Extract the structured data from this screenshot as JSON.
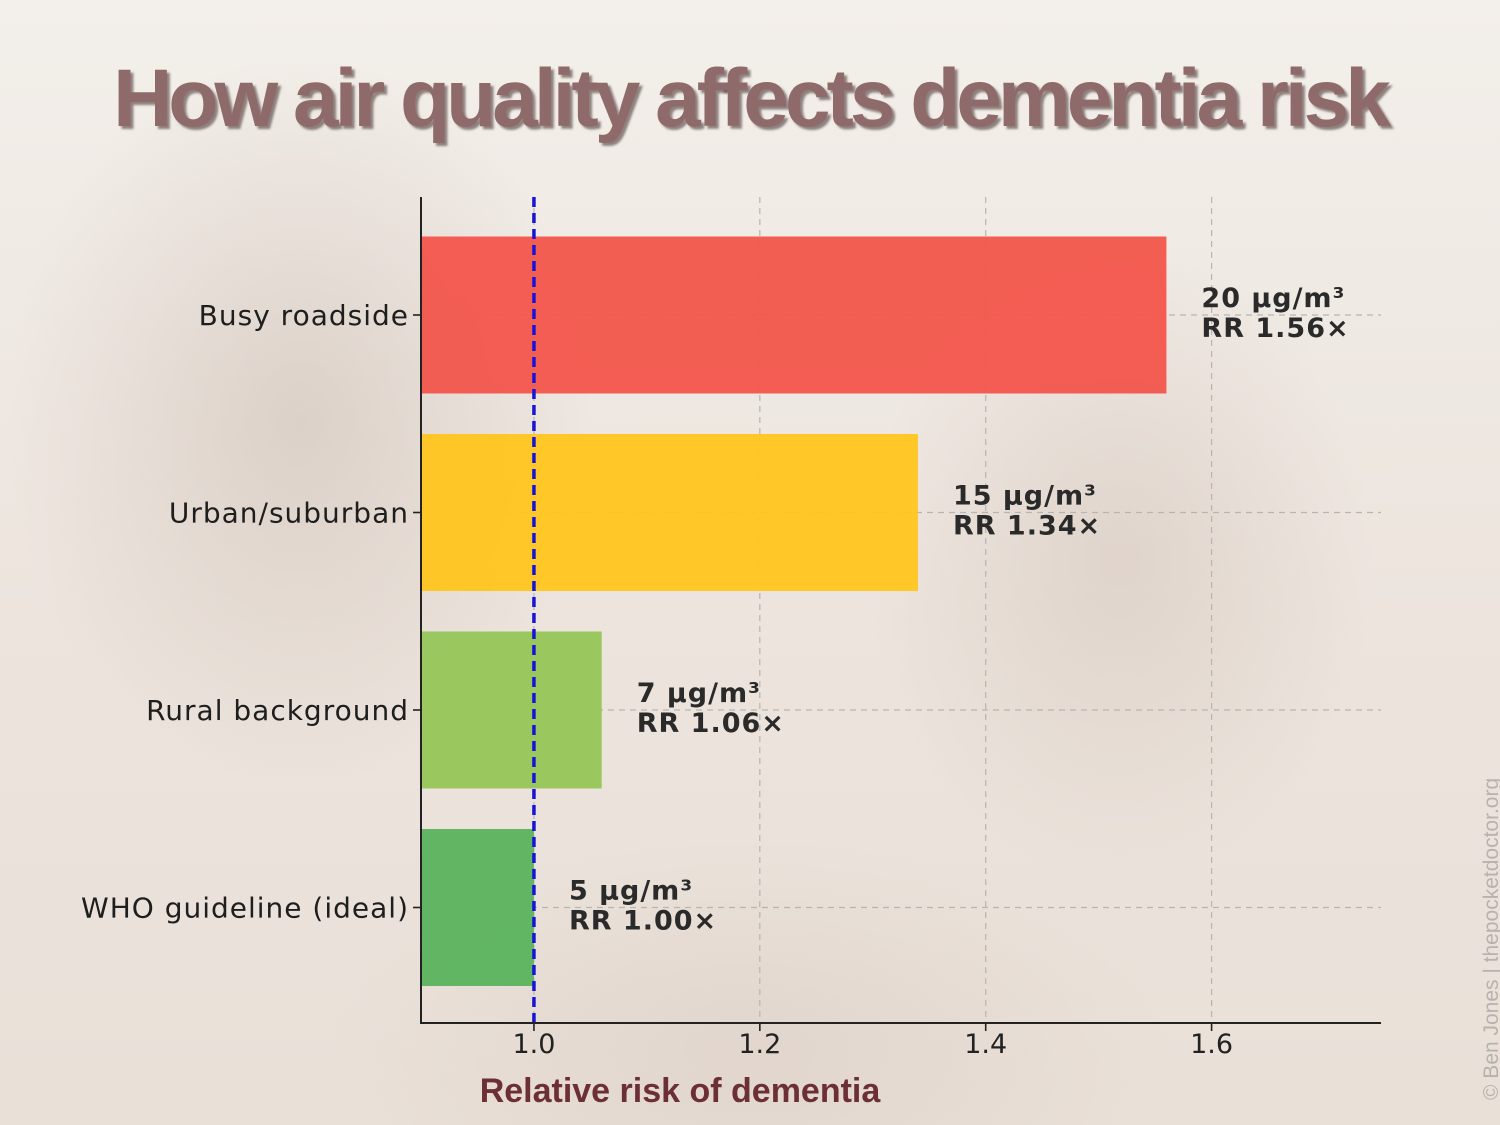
{
  "title": "How air quality affects dementia risk",
  "watermark": "© Ben Jones | thepocketdoctor.org",
  "chart_data": {
    "type": "bar",
    "orientation": "horizontal",
    "title": "How air quality affects dementia risk",
    "xlabel": "Relative risk of dementia",
    "ylabel": "",
    "xlim": [
      0.9,
      1.75
    ],
    "xticks": [
      1.0,
      1.2,
      1.4,
      1.6
    ],
    "xtick_labels": [
      "1.0",
      "1.2",
      "1.4",
      "1.6"
    ],
    "grid": true,
    "reference_line": {
      "value": 1.0,
      "color": "#1515d8",
      "style": "dashed"
    },
    "categories": [
      "Busy roadside",
      "Urban/suburban",
      "Rural background",
      "WHO guideline (ideal)"
    ],
    "values": [
      1.56,
      1.34,
      1.06,
      1.0
    ],
    "colors": [
      "#f2574d",
      "#ffc61f",
      "#97c659",
      "#5cb45e"
    ],
    "annotations": [
      {
        "line1": "20 µg/m³",
        "line2": "RR 1.56×"
      },
      {
        "line1": "15 µg/m³",
        "line2": "RR 1.34×"
      },
      {
        "line1": "7 µg/m³",
        "line2": "RR 1.06×"
      },
      {
        "line1": "5 µg/m³",
        "line2": "RR 1.00×"
      }
    ]
  }
}
